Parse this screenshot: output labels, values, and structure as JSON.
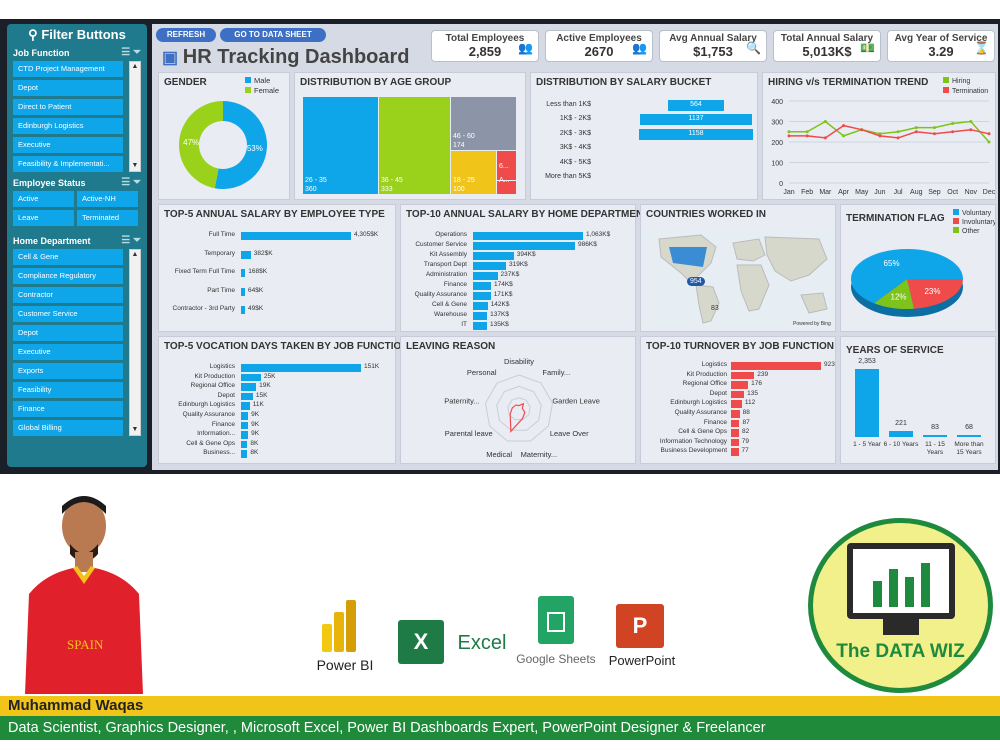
{
  "sidebar": {
    "title": "Filter Buttons",
    "job_function": {
      "label": "Job Function",
      "items": [
        "CTD Project Management",
        "Depot",
        "Direct to Patient",
        "Edinburgh Logistics",
        "Executive",
        "Feasibility & Implementati..."
      ]
    },
    "employee_status": {
      "label": "Employee Status",
      "items": [
        "Active",
        "Active-NH",
        "Leave",
        "Terminated"
      ]
    },
    "home_department": {
      "label": "Home Department",
      "items": [
        "Cell & Gene",
        "Compliance Regulatory",
        "Contractor",
        "Customer Service",
        "Depot",
        "Executive",
        "Exports",
        "Feasibility",
        "Finance",
        "Global Billing"
      ]
    }
  },
  "header": {
    "refresh": "REFRESH",
    "goto": "GO TO DATA SHEET",
    "title": "HR Tracking Dashboard"
  },
  "kpis": [
    {
      "label": "Total Employees",
      "value": "2,859"
    },
    {
      "label": "Active Employees",
      "value": "2670"
    },
    {
      "label": "Avg Annual Salary",
      "value": "$1,753"
    },
    {
      "label": "Total Annual Salary",
      "value": "5,013K$"
    },
    {
      "label": "Avg Year of Service",
      "value": "3.29"
    }
  ],
  "panels": {
    "gender": "GENDER",
    "age": "DISTRIBUTION BY AGE GROUP",
    "salary_bucket": "DISTRIBUTION BY SALARY BUCKET",
    "hiring": "HIRING v/s TERMINATION TREND",
    "top5_salary": "TOP-5 ANNUAL SALARY BY EMPLOYEE TYPE",
    "top10_salary": "TOP-10 ANNUAL SALARY BY HOME DEPARTMENT",
    "countries": "COUNTRIES WORKED IN",
    "term_flag": "TERMINATION FLAG",
    "vacation": "TOP-5 VOCATION DAYS TAKEN BY JOB FUNCTION",
    "leaving": "LEAVING REASON",
    "turnover": "TOP-10 TURNOVER BY JOB FUNCTION",
    "yos": "YEARS OF SERVICE"
  },
  "chart_data": [
    {
      "type": "pie",
      "title": "GENDER",
      "labels": [
        "Male",
        "Female"
      ],
      "values": [
        53,
        47
      ],
      "colors": [
        "#0ea5e9",
        "#9ad21b"
      ]
    },
    {
      "type": "heatmap",
      "title": "DISTRIBUTION BY AGE GROUP",
      "cells": [
        {
          "label": "26 - 35",
          "value": 360,
          "color": "#0ea5e9"
        },
        {
          "label": "36 - 45",
          "value": 333,
          "color": "#9ad21b"
        },
        {
          "label": "46 - 60",
          "value": 174,
          "color": "#8c95a8"
        },
        {
          "label": "18 - 25",
          "value": 100,
          "color": "#f0c419"
        },
        {
          "label": "6...",
          "value": "",
          "color": "#ef4b4b"
        },
        {
          "label": "A...",
          "value": "",
          "color": "#ef4b4b"
        }
      ]
    },
    {
      "type": "bar",
      "title": "DISTRIBUTION BY SALARY BUCKET",
      "categories": [
        "Less than 1K$",
        "1K$ - 2K$",
        "2K$ - 3K$",
        "3K$ - 4K$",
        "4K$ - 5K$",
        "More than 5K$"
      ],
      "values": [
        564,
        1137,
        1158,
        0,
        0,
        0
      ]
    },
    {
      "type": "line",
      "title": "HIRING v/s TERMINATION TREND",
      "categories": [
        "Jan",
        "Feb",
        "Mar",
        "Apr",
        "May",
        "Jun",
        "Jul",
        "Aug",
        "Sep",
        "Oct",
        "Nov",
        "Dec"
      ],
      "ylim": [
        0,
        400
      ],
      "yticks": [
        0,
        100,
        200,
        300,
        400
      ],
      "series": [
        {
          "name": "Hiring",
          "color": "#7ec31b",
          "values": [
            250,
            250,
            300,
            230,
            260,
            240,
            250,
            270,
            270,
            290,
            300,
            200
          ]
        },
        {
          "name": "Termination",
          "color": "#ef4b4b",
          "values": [
            230,
            230,
            220,
            280,
            260,
            230,
            220,
            250,
            240,
            250,
            260,
            240
          ]
        }
      ]
    },
    {
      "type": "bar",
      "title": "TOP-5 ANNUAL SALARY BY EMPLOYEE TYPE",
      "categories": [
        "Full Time",
        "Temporary",
        "Fixed Term Full Time",
        "Part Time",
        "Contractor - 3rd Party"
      ],
      "values": [
        4305,
        382,
        168,
        64,
        49
      ],
      "labels": [
        "4,305$K",
        "382$K",
        "168$K",
        "64$K",
        "49$K"
      ]
    },
    {
      "type": "bar",
      "title": "TOP-10 ANNUAL SALARY BY HOME DEPARTMENT",
      "categories": [
        "Operations",
        "Customer Service",
        "Kit Assembly",
        "Transport Dept",
        "Administration",
        "Finance",
        "Quality Assurance",
        "Cell & Gene",
        "Warehouse",
        "IT"
      ],
      "values": [
        1063,
        986,
        394,
        319,
        237,
        174,
        171,
        142,
        137,
        135
      ],
      "labels": [
        "1,063K$",
        "986K$",
        "394K$",
        "319K$",
        "237K$",
        "174K$",
        "171K$",
        "142K$",
        "137K$",
        "135K$"
      ]
    },
    {
      "type": "pie",
      "title": "TERMINATION FLAG",
      "labels": [
        "Voluntary",
        "Involuntary",
        "Other"
      ],
      "values": [
        65,
        23,
        12
      ],
      "colors": [
        "#0ea5e9",
        "#ef4b4b",
        "#7ec31b"
      ]
    },
    {
      "type": "bar",
      "title": "TOP-5 VOCATION DAYS TAKEN BY JOB FUNCTION",
      "categories": [
        "Logistics",
        "Kit Production",
        "Regional Office",
        "Depot",
        "Edinburgh Logistics",
        "Quality Assurance",
        "Finance",
        "Information...",
        "Cell & Gene Ops",
        "Business..."
      ],
      "values": [
        151,
        25,
        19,
        15,
        11,
        9,
        9,
        9,
        8,
        8
      ],
      "labels": [
        "151K",
        "25K",
        "19K",
        "15K",
        "11K",
        "9K",
        "9K",
        "9K",
        "8K",
        "8K"
      ]
    },
    {
      "type": "line",
      "title": "LEAVING REASON",
      "categories": [
        "Disability",
        "Family...",
        "Garden Leave",
        "Leave Over",
        "Maternity...",
        "Medical",
        "Parental leave",
        "Paternity...",
        "Personal"
      ]
    },
    {
      "type": "bar",
      "title": "TOP-10 TURNOVER BY JOB FUNCTION",
      "categories": [
        "Logistics",
        "Kit Production",
        "Regional Office",
        "Depot",
        "Edinburgh Logistics",
        "Quality Assurance",
        "Finance",
        "Cell & Gene Ops",
        "Information Technology",
        "Business Development"
      ],
      "values": [
        923,
        239,
        176,
        135,
        112,
        88,
        87,
        82,
        79,
        77
      ]
    },
    {
      "type": "bar",
      "title": "YEARS OF SERVICE",
      "categories": [
        "1 - 5 Year",
        "6 - 10 Years",
        "11 - 15 Years",
        "More than 15 Years"
      ],
      "values": [
        2353,
        221,
        83,
        68
      ],
      "labels": [
        "2,353",
        "221",
        "83",
        "68"
      ]
    }
  ],
  "map": {
    "labels": [
      "954",
      "83"
    ],
    "credit": "Powered by Bing"
  },
  "bottom": {
    "apps": [
      "Power BI",
      "Excel",
      "Google Sheets",
      "PowerPoint"
    ],
    "logo_text": "The DATA WIZ",
    "name": "Muhammad Waqas",
    "role": "Data Scientist, Graphics Designer, , Microsoft Excel, Power BI Dashboards Expert, PowerPoint Designer & Freelancer",
    "shirt_text": "SPAIN"
  }
}
